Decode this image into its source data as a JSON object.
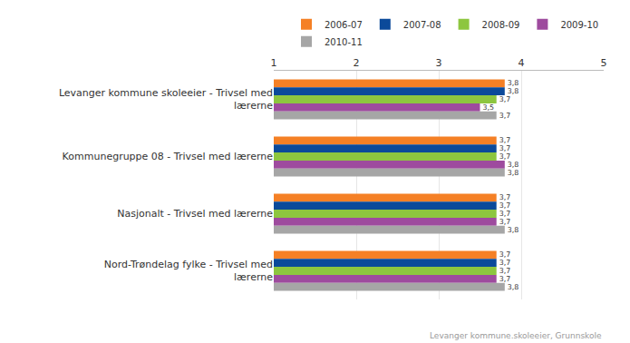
{
  "chart_data": {
    "type": "bar",
    "orientation": "horizontal",
    "categories": [
      "Levanger kommune skoleeier - Trivsel med lærerne",
      "Kommunegruppe 08 - Trivsel med lærerne",
      "Nasjonalt - Trivsel med lærerne",
      "Nord-Trøndelag fylke - Trivsel med lærerne"
    ],
    "series": [
      {
        "name": "2006-07",
        "color": "#f58025",
        "values": [
          3.8,
          3.7,
          3.7,
          3.7
        ],
        "value_labels": [
          "3,8",
          "3,7",
          "3,7",
          "3,7"
        ]
      },
      {
        "name": "2007-08",
        "color": "#0b4a9a",
        "values": [
          3.8,
          3.7,
          3.7,
          3.7
        ],
        "value_labels": [
          "3,8",
          "3,7",
          "3,7",
          "3,7"
        ]
      },
      {
        "name": "2008-09",
        "color": "#8dc63f",
        "values": [
          3.7,
          3.7,
          3.7,
          3.7
        ],
        "value_labels": [
          "3,7",
          "3,7",
          "3,7",
          "3,7"
        ]
      },
      {
        "name": "2009-10",
        "color": "#9e4b9e",
        "values": [
          3.5,
          3.8,
          3.7,
          3.7
        ],
        "value_labels": [
          "3,5",
          "3,8",
          "3,7",
          "3,7"
        ]
      },
      {
        "name": "2010-11",
        "color": "#a6a6a6",
        "values": [
          3.7,
          3.8,
          3.8,
          3.8
        ],
        "value_labels": [
          "3,7",
          "3,8",
          "3,8",
          "3,8"
        ]
      }
    ],
    "xlim": [
      1,
      5
    ],
    "xticks": [
      1,
      2,
      3,
      4,
      5
    ],
    "grid": true,
    "data_labels": true,
    "legend": "top",
    "annotations": [
      "Levanger kommune.skoleeier, Grunnskole"
    ]
  }
}
